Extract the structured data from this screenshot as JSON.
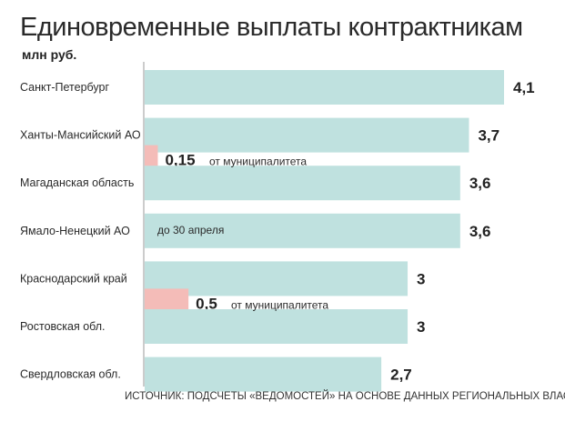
{
  "chart_data": {
    "type": "bar",
    "orientation": "horizontal",
    "title": "Единовременные выплаты контрактникам",
    "units": "млн руб.",
    "xlim": [
      0,
      4.1
    ],
    "categories": [
      "Санкт-Петербург",
      "Ханты-Мансийский АО",
      "Магаданская область",
      "Ямало-Ненецкий АО",
      "Краснодарский край",
      "Ростовская обл.",
      "Свердловская обл."
    ],
    "series": [
      {
        "name": "regional",
        "color": "#bfe1df",
        "values": [
          4.1,
          3.7,
          3.6,
          3.6,
          3,
          3,
          2.7
        ],
        "labels": [
          "4,1",
          "3,7",
          "3,6",
          "3,6",
          "3",
          "3",
          "2,7"
        ]
      },
      {
        "name": "municipal",
        "color": "#f4bcb8",
        "values": [
          null,
          0.15,
          null,
          null,
          0.5,
          null,
          null
        ],
        "labels": [
          null,
          "0,15",
          null,
          null,
          "0,5",
          null,
          null
        ]
      }
    ],
    "annotations": [
      {
        "category": "Ханты-Мансийский АО",
        "text": "от муниципалитета"
      },
      {
        "category": "Ямало-Ненецкий АО",
        "text": "до 30 апреля"
      },
      {
        "category": "Краснодарский край",
        "text": "от муниципалитета"
      }
    ],
    "source": "ИСТОЧНИК: ПОДСЧЕТЫ «ВЕДОМОСТЕЙ» НА ОСНОВЕ ДАННЫХ РЕГИОНАЛЬНЫХ ВЛАСТЕЙ"
  }
}
